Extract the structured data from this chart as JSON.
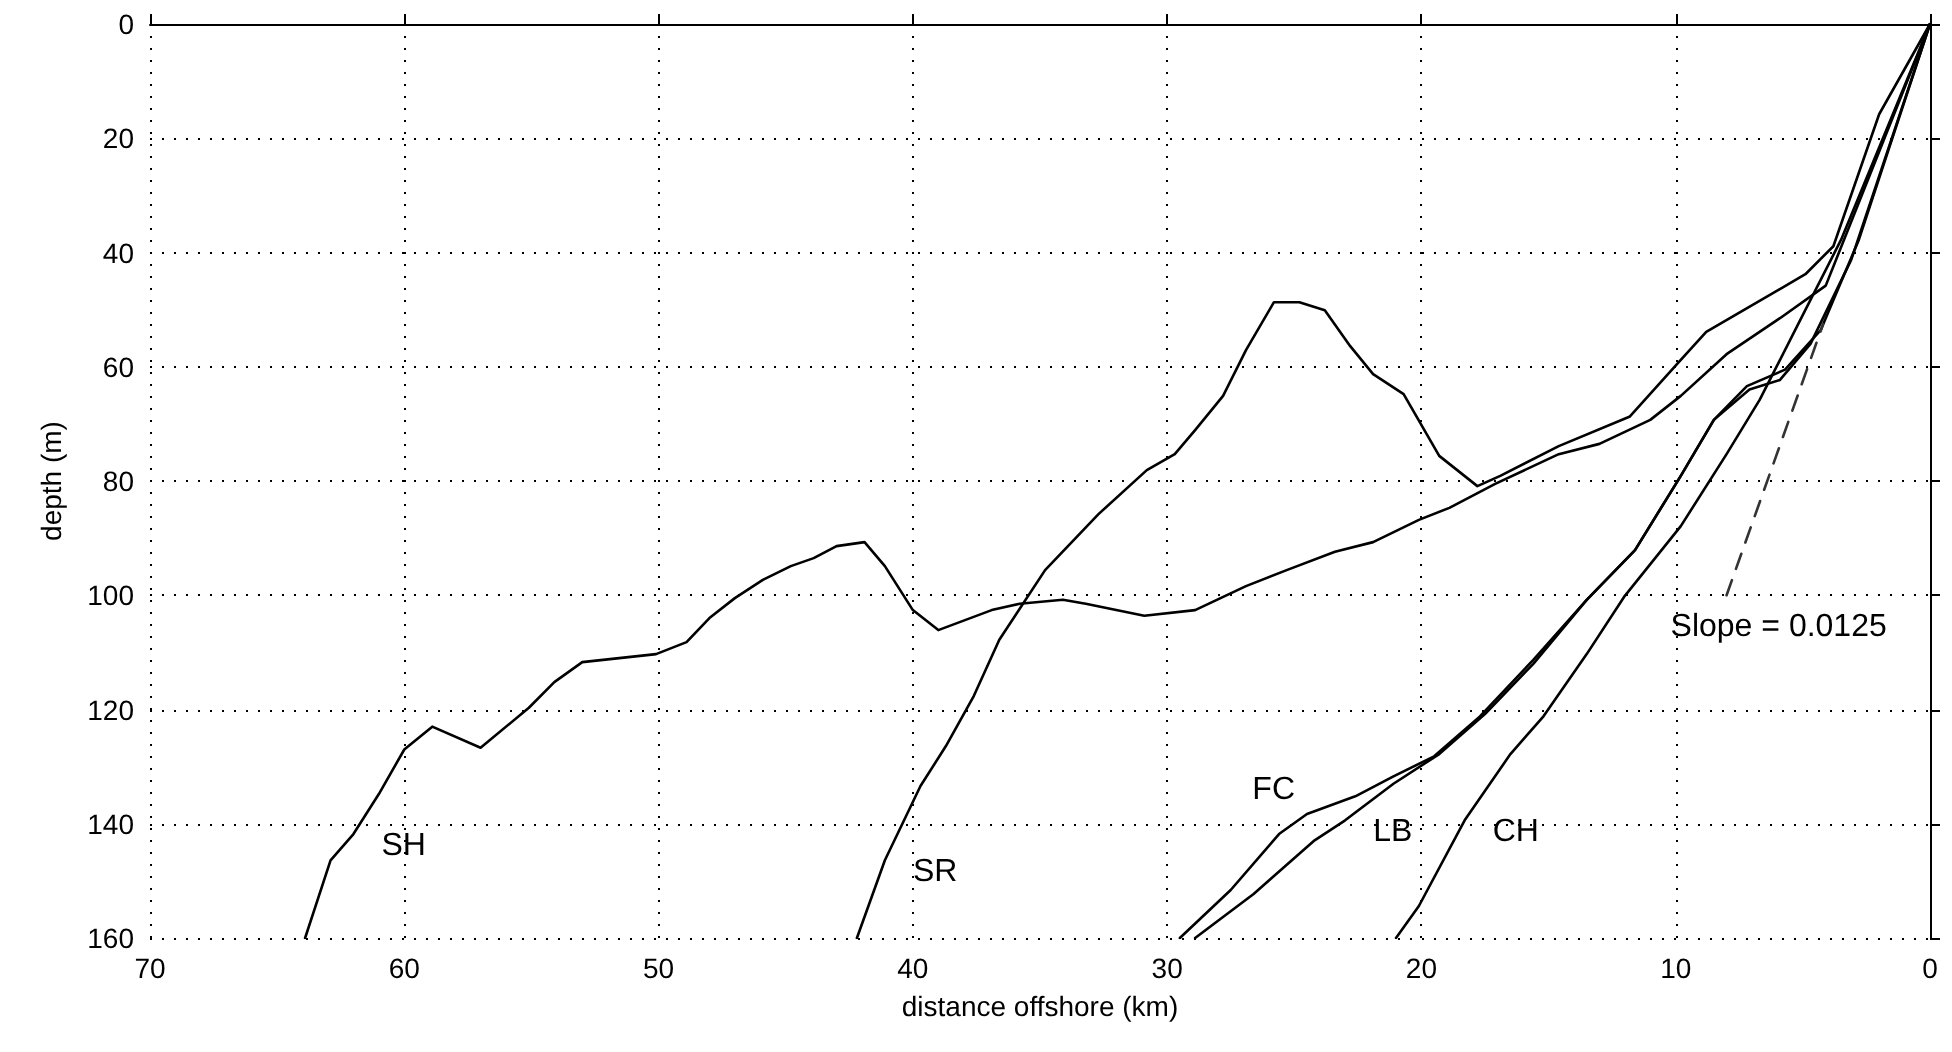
{
  "chart_data": {
    "type": "line",
    "xlabel": "distance offshore (km)",
    "ylabel": "depth (m)",
    "xlim": [
      70,
      0
    ],
    "ylim": [
      160,
      0
    ],
    "xticks": [
      70,
      60,
      50,
      40,
      30,
      20,
      10,
      0
    ],
    "yticks": [
      0,
      20,
      40,
      60,
      80,
      100,
      120,
      140,
      160
    ],
    "grid": true,
    "legend": false,
    "marker": "none",
    "line_style": "solid",
    "series": [
      {
        "name": "SH",
        "color": "#000000",
        "x": [
          63.9,
          62.9,
          62.0,
          61.0,
          60.0,
          58.9,
          57.0,
          55.1,
          54.1,
          53.0,
          50.1,
          48.9,
          48.0,
          47.0,
          45.9,
          44.8,
          43.9,
          43.0,
          41.9,
          41.1,
          40.0,
          39.0,
          36.9,
          35.8,
          34.1,
          33.2,
          30.9,
          28.9,
          26.9,
          25.3,
          23.4,
          21.9,
          20.1,
          18.9,
          17.1,
          14.6,
          13.0,
          11.0,
          9.8,
          8.0,
          5.9,
          4.1,
          0
        ],
        "values": [
          160,
          146.4,
          141.8,
          134.8,
          127,
          123,
          126.7,
          119.7,
          115.2,
          111.7,
          110.3,
          108.2,
          104,
          100.5,
          97.3,
          94.9,
          93.5,
          91.4,
          90.7,
          94.9,
          102.6,
          106.1,
          102.6,
          101.5,
          100.8,
          101.5,
          103.6,
          102.6,
          98.4,
          95.6,
          92.4,
          90.7,
          86.8,
          84.7,
          80.5,
          75.3,
          73.5,
          69.3,
          65.1,
          57.8,
          51.5,
          45.8,
          0
        ]
      },
      {
        "name": "SR",
        "color": "#000000",
        "x": [
          42.2,
          41.1,
          39.7,
          38.7,
          37.6,
          36.6,
          34.8,
          32.7,
          30.8,
          29.7,
          28.9,
          27.8,
          26.9,
          25.8,
          24.8,
          23.8,
          22.8,
          21.9,
          20.7,
          19.3,
          17.8,
          16.9,
          14.6,
          11.8,
          9.8,
          8.8,
          4.9,
          3.8,
          2.0,
          0
        ],
        "values": [
          160,
          146.4,
          133.4,
          126.4,
          117.6,
          107.8,
          95.6,
          85.8,
          78.1,
          75.3,
          71.1,
          65.1,
          57.1,
          48.7,
          48.7,
          50.1,
          56.4,
          61.3,
          64.8,
          75.6,
          80.9,
          79.1,
          73.9,
          68.7,
          58.8,
          53.9,
          43.8,
          38.9,
          15.8,
          0
        ]
      },
      {
        "name": "FC",
        "color": "#000000",
        "x": [
          29.5,
          27.5,
          25.6,
          24.5,
          22.6,
          21.1,
          19.5,
          17.7,
          15.6,
          13.5,
          11.6,
          9.8,
          8.5,
          7.2,
          5.7,
          4.3,
          2.8,
          0
        ],
        "values": [
          160,
          151.6,
          141.8,
          138.3,
          135.2,
          131.7,
          128.2,
          121.2,
          111.3,
          100.8,
          92.1,
          79.1,
          69.3,
          63.4,
          60.5,
          53.6,
          37.8,
          0
        ]
      },
      {
        "name": "LB",
        "color": "#000000",
        "x": [
          28.9,
          26.6,
          24.2,
          23.0,
          21.1,
          19.3,
          17.5,
          15.6,
          13.5,
          11.6,
          9.8,
          8.5,
          7.1,
          5.9,
          4.7,
          3.1,
          0
        ],
        "values": [
          160,
          152.3,
          142.9,
          139.4,
          133,
          127.8,
          120.8,
          112,
          100.8,
          92.1,
          79.1,
          69.3,
          64,
          62.3,
          56,
          41.3,
          0
        ]
      },
      {
        "name": "CH",
        "color": "#000000",
        "x": [
          21.0,
          20.1,
          18.3,
          16.5,
          15.2,
          13.5,
          12.0,
          9.8,
          8.0,
          6.7,
          5.1,
          3.5,
          0
        ],
        "values": [
          160,
          154.4,
          139.4,
          127.8,
          121.2,
          110.3,
          100.1,
          87.9,
          75.3,
          65.8,
          51.8,
          37.8,
          0
        ]
      },
      {
        "name": "Slope = 0.0125",
        "color": "#333333",
        "line_style": "dashed",
        "x": [
          8,
          4.2
        ],
        "values": [
          100,
          52.5
        ]
      }
    ]
  }
}
